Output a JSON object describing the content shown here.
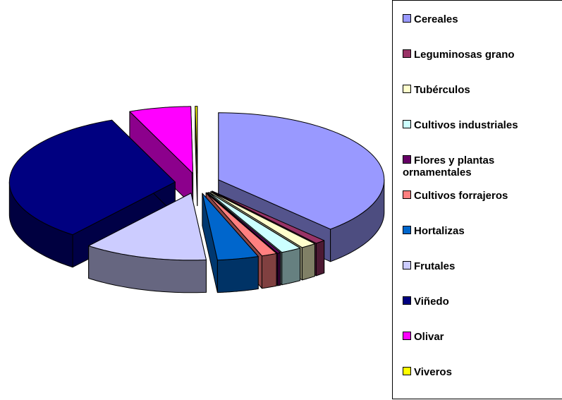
{
  "chart_data": {
    "type": "pie3d",
    "categories": [
      "Cereales",
      "Leguminosas grano",
      "Tubérculos",
      "Cultivos industriales",
      "Flores y plantas ornamentales",
      "Cultivos forrajeros",
      "Hortalizas",
      "Frutales",
      "Viñedo",
      "Olivar",
      "Viveros"
    ],
    "values": [
      38,
      1,
      1.5,
      2,
      0.3,
      1.5,
      4,
      12,
      33,
      6,
      0.2
    ],
    "colors": [
      "#9999ff",
      "#993366",
      "#ffffcc",
      "#ccffff",
      "#660066",
      "#ff8080",
      "#0066cc",
      "#ccccff",
      "#000080",
      "#ff00ff",
      "#ffff00"
    ],
    "legend": "right"
  }
}
